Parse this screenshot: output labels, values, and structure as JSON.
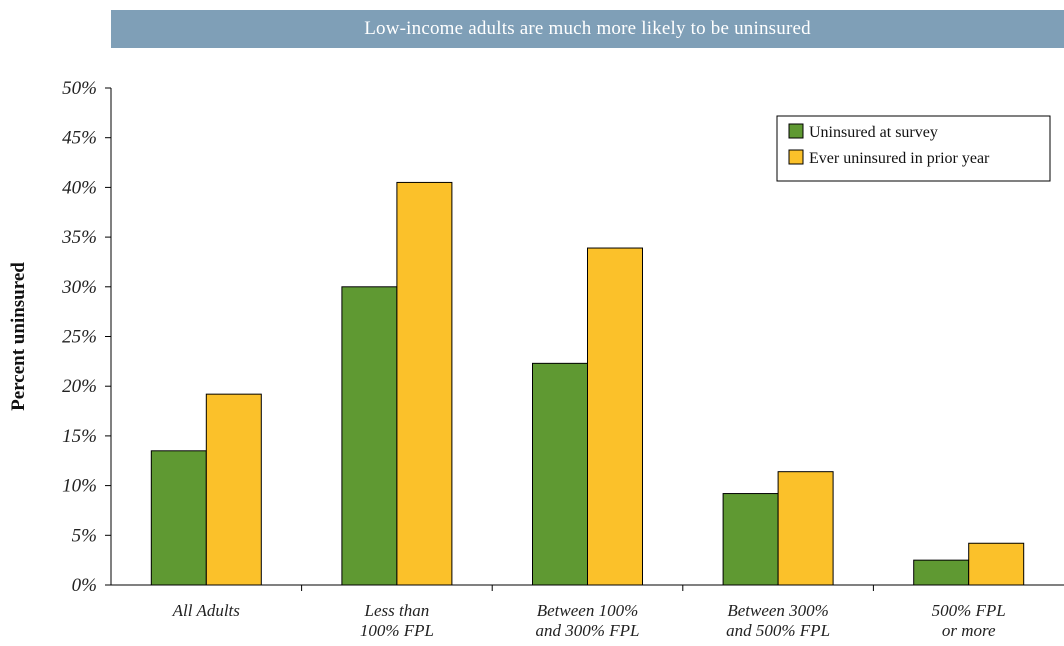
{
  "chart_data": {
    "type": "bar",
    "title": "Low-income adults are much more likely to be uninsured",
    "ylabel": "Percent uninsured",
    "xlabel": "",
    "ylim": [
      0,
      50
    ],
    "yticks": [
      "0%",
      "5%",
      "10%",
      "15%",
      "20%",
      "25%",
      "30%",
      "35%",
      "40%",
      "45%",
      "50%"
    ],
    "categories": [
      [
        "All Adults"
      ],
      [
        "Less than",
        "100% FPL"
      ],
      [
        "Between 100%",
        "and 300% FPL"
      ],
      [
        "Between 300%",
        "and 500% FPL"
      ],
      [
        "500% FPL",
        "or more"
      ]
    ],
    "series": [
      {
        "name": "Uninsured at survey",
        "color": "#5f9932",
        "values": [
          13.5,
          30.0,
          22.3,
          9.2,
          2.5
        ]
      },
      {
        "name": "Ever uninsured in prior year",
        "color": "#fbc12a",
        "values": [
          19.2,
          40.5,
          33.9,
          11.4,
          4.2
        ]
      }
    ],
    "legend_position": "top-right",
    "grid": false
  }
}
